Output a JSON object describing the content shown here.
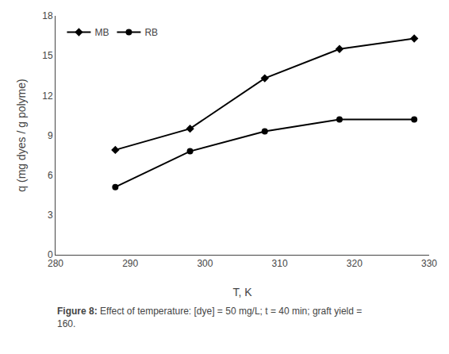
{
  "chart_data": {
    "type": "line",
    "x_label": "T, K",
    "y_label": "q (mg dyes / g polyme)",
    "x": [
      288,
      298,
      308,
      318,
      328
    ],
    "series": [
      {
        "name": "MB",
        "color": "#000000",
        "marker": "diamond",
        "line_style": "solid",
        "values": [
          7.9,
          9.5,
          13.3,
          15.5,
          16.3
        ]
      },
      {
        "name": "RB",
        "color": "#000000",
        "marker": "circle",
        "line_style": "solid",
        "values": [
          5.1,
          7.8,
          9.3,
          10.2,
          10.2
        ]
      }
    ],
    "xlim": [
      280,
      330
    ],
    "xticks": [
      280,
      290,
      300,
      310,
      320,
      330
    ],
    "ylim": [
      0,
      18
    ],
    "yticks": [
      0,
      3,
      6,
      9,
      12,
      15,
      18
    ],
    "grid": false,
    "legend": "upper left",
    "annotations": [
      "Figure 8:",
      " Effect of temperature: [dye] = 50 mg/L; t = 40 min; graft yield =\n160."
    ]
  }
}
